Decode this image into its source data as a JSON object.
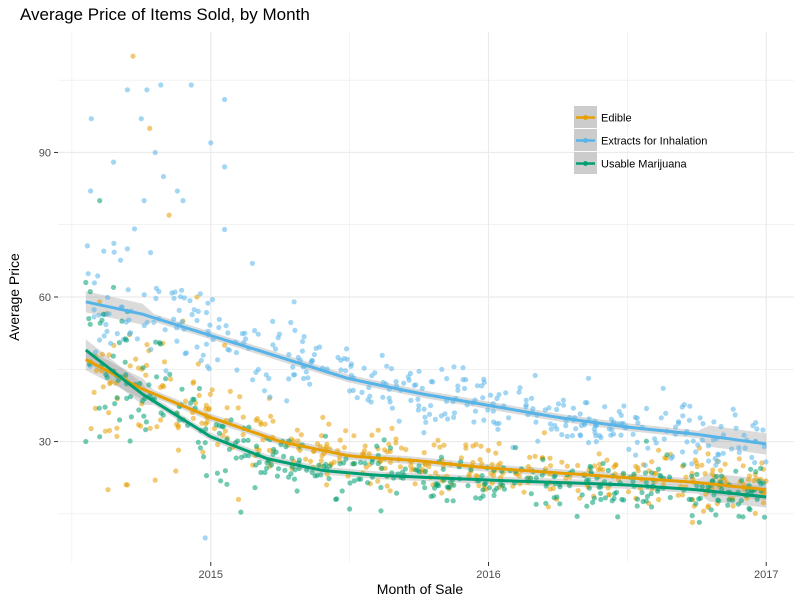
{
  "chart_data": {
    "type": "scatter",
    "title": "Average Price of Items Sold, by Month",
    "xlabel": "Month of Sale",
    "ylabel": "Average Price",
    "x_ticks": [
      {
        "label": "2015",
        "value": 2015.0
      },
      {
        "label": "2016",
        "value": 2016.0
      },
      {
        "label": "2017",
        "value": 2017.0
      }
    ],
    "y_ticks": [
      30,
      60,
      90
    ],
    "xlim": [
      2014.45,
      2017.1
    ],
    "ylim": [
      5,
      115
    ],
    "grid": true,
    "legend_position": "top-right",
    "colors": {
      "edible": "#E69F00",
      "extracts": "#56B4E9",
      "usable": "#009E73",
      "panel_bg": "#ffffff",
      "grid": "#ebebeb",
      "ribbon": "#999999",
      "legend_key_bg": "#cccccc"
    },
    "series": [
      {
        "name": "Edible",
        "color": "#E69F00",
        "trend": [
          [
            2014.55,
            47
          ],
          [
            2014.75,
            41
          ],
          [
            2015.0,
            35
          ],
          [
            2015.25,
            30
          ],
          [
            2015.5,
            27
          ],
          [
            2015.75,
            26
          ],
          [
            2016.0,
            24.5
          ],
          [
            2016.25,
            23.5
          ],
          [
            2016.5,
            22.5
          ],
          [
            2016.75,
            21.5
          ],
          [
            2017.0,
            20
          ]
        ],
        "spread": 3.2,
        "outliers": [
          [
            2014.72,
            110
          ],
          [
            2014.78,
            95
          ],
          [
            2014.85,
            77
          ],
          [
            2014.6,
            59
          ],
          [
            2014.9,
            55
          ],
          [
            2015.1,
            18
          ],
          [
            2014.95,
            60
          ],
          [
            2015.05,
            50
          ],
          [
            2014.8,
            22
          ],
          [
            2014.63,
            20
          ],
          [
            2014.7,
            21
          ]
        ]
      },
      {
        "name": "Extracts for Inhalation",
        "color": "#56B4E9",
        "trend": [
          [
            2014.55,
            59
          ],
          [
            2014.75,
            56.5
          ],
          [
            2015.0,
            52
          ],
          [
            2015.25,
            47.5
          ],
          [
            2015.5,
            43
          ],
          [
            2015.75,
            40
          ],
          [
            2016.0,
            37.5
          ],
          [
            2016.25,
            35
          ],
          [
            2016.5,
            33
          ],
          [
            2016.75,
            31.5
          ],
          [
            2017.0,
            29.5
          ]
        ],
        "spread": 3.6,
        "outliers": [
          [
            2014.57,
            97
          ],
          [
            2014.7,
            103
          ],
          [
            2014.77,
            103
          ],
          [
            2014.82,
            104
          ],
          [
            2014.93,
            104
          ],
          [
            2014.75,
            97
          ],
          [
            2014.8,
            90
          ],
          [
            2014.65,
            88
          ],
          [
            2015.05,
            101
          ],
          [
            2015.0,
            92
          ],
          [
            2015.05,
            87
          ],
          [
            2014.88,
            82
          ],
          [
            2014.83,
            85
          ],
          [
            2014.76,
            80
          ],
          [
            2014.9,
            80
          ],
          [
            2015.15,
            67
          ],
          [
            2015.05,
            74
          ],
          [
            2014.98,
            10
          ],
          [
            2014.7,
            70
          ],
          [
            2015.3,
            59
          ]
        ]
      },
      {
        "name": "Usable Marijuana",
        "color": "#009E73",
        "trend": [
          [
            2014.55,
            49
          ],
          [
            2014.75,
            40
          ],
          [
            2015.0,
            31
          ],
          [
            2015.2,
            26.5
          ],
          [
            2015.4,
            24
          ],
          [
            2015.6,
            23
          ],
          [
            2015.8,
            22.5
          ],
          [
            2016.0,
            22
          ],
          [
            2016.25,
            21.5
          ],
          [
            2016.5,
            21
          ],
          [
            2016.75,
            20
          ],
          [
            2017.0,
            18.5
          ]
        ],
        "spread": 2.8,
        "outliers": [
          [
            2014.6,
            80
          ],
          [
            2014.55,
            63
          ],
          [
            2014.65,
            62
          ],
          [
            2014.68,
            55
          ],
          [
            2014.7,
            57
          ],
          [
            2014.55,
            30
          ],
          [
            2014.6,
            31
          ],
          [
            2015.45,
            18
          ],
          [
            2015.5,
            16
          ],
          [
            2016.9,
            17
          ]
        ]
      }
    ]
  }
}
